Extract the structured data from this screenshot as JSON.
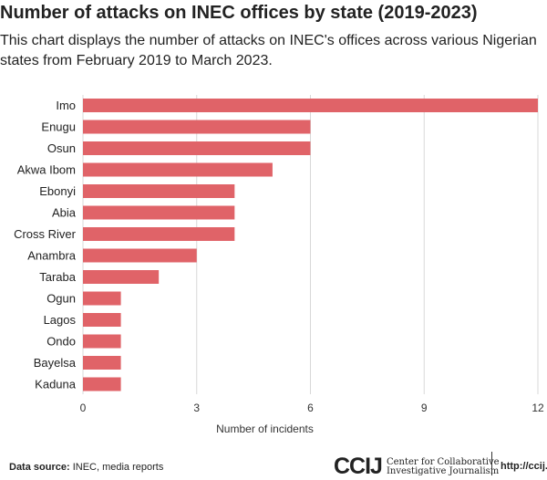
{
  "chart_data": {
    "type": "bar",
    "orientation": "horizontal",
    "title": "Number of attacks on INEC offices by state (2019-2023)",
    "subtitle": "This chart displays the number of attacks on INEC's offices across various Nigerian states from February 2019 to March 2023.",
    "categories": [
      "Imo",
      "Enugu",
      "Osun",
      "Akwa Ibom",
      "Ebonyi",
      "Abia",
      "Cross River",
      "Anambra",
      "Taraba",
      "Ogun",
      "Lagos",
      "Ondo",
      "Bayelsa",
      "Kaduna"
    ],
    "values": [
      12,
      6,
      6,
      5,
      4,
      4,
      4,
      3,
      2,
      1,
      1,
      1,
      1,
      1
    ],
    "xlabel": "Number of incidents",
    "ylabel": "",
    "xlim": [
      0,
      12
    ],
    "xticks": [
      0,
      3,
      6,
      9,
      12
    ],
    "grid": true,
    "bar_color": "#e06368"
  },
  "footer": {
    "source_label": "Data source:",
    "source_text": " INEC, media reports",
    "logo_mark": "CCIJ",
    "logo_line1": "Center for Collaborative",
    "logo_line2": "Investigative Journalism",
    "url": "http://ccij.io"
  }
}
